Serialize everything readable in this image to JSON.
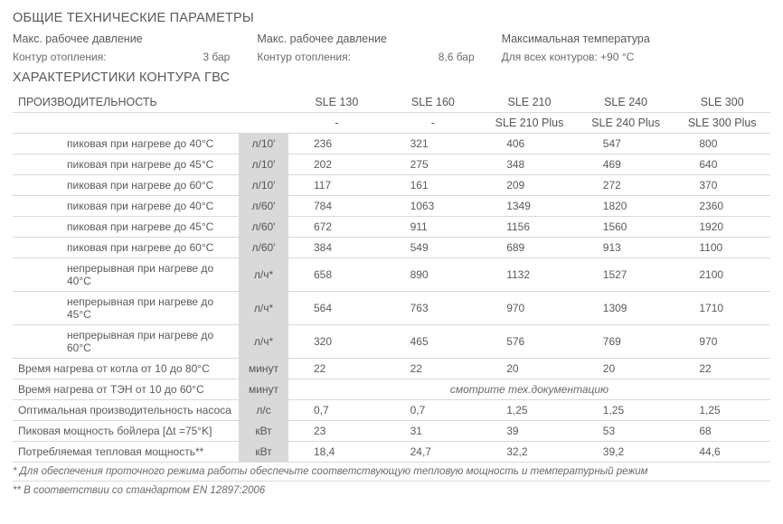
{
  "titles": {
    "general": "ОБЩИЕ ТЕХНИЧЕСКИЕ ПАРАМЕТРЫ",
    "dhw": "ХАРАКТЕРИСТИКИ КОНТУРА ГВС",
    "performance": "ПРОИЗВОДИТЕЛЬНОСТЬ"
  },
  "general": {
    "col1": {
      "head": "Макс. рабочее давление",
      "label": "Контур отопления:",
      "value": "3 бар"
    },
    "col2": {
      "head": "Макс. рабочее давление",
      "label": "Контур отопления:",
      "value": "8,6 бар"
    },
    "col3": {
      "head": "Максимальная температура",
      "label": "Для всех контуров: +90 °C",
      "value": ""
    }
  },
  "models": {
    "m1": "SLE 130",
    "m2": "SLE 160",
    "m3": "SLE 210",
    "m4": "SLE 240",
    "m5": "SLE 300",
    "p1": "-",
    "p2": "-",
    "p3": "SLE 210 Plus",
    "p4": "SLE 240 Plus",
    "p5": "SLE 300 Plus"
  },
  "rows": [
    {
      "label": "пиковая при нагреве до 40°C",
      "unit": "л/10'",
      "v": [
        "236",
        "321",
        "406",
        "547",
        "800"
      ],
      "indent": true
    },
    {
      "label": "пиковая при нагреве до 45°C",
      "unit": "л/10'",
      "v": [
        "202",
        "275",
        "348",
        "469",
        "640"
      ],
      "indent": true
    },
    {
      "label": "пиковая при нагреве до 60°C",
      "unit": "л/10'",
      "v": [
        "117",
        "161",
        "209",
        "272",
        "370"
      ],
      "indent": true
    },
    {
      "label": "пиковая при нагреве до 40°C",
      "unit": "л/60'",
      "v": [
        "784",
        "1063",
        "1349",
        "1820",
        "2360"
      ],
      "indent": true
    },
    {
      "label": "пиковая при нагреве до 45°C",
      "unit": "л/60'",
      "v": [
        "672",
        "911",
        "1156",
        "1560",
        "1920"
      ],
      "indent": true
    },
    {
      "label": "пиковая при нагреве до 60°C",
      "unit": "л/60'",
      "v": [
        "384",
        "549",
        "689",
        "913",
        "1100"
      ],
      "indent": true
    },
    {
      "label": "непрерывная при нагреве до 40°C",
      "unit": "л/ч*",
      "v": [
        "658",
        "890",
        "1132",
        "1527",
        "2100"
      ],
      "indent": true
    },
    {
      "label": "непрерывная при нагреве до 45°C",
      "unit": "л/ч*",
      "v": [
        "564",
        "763",
        "970",
        "1309",
        "1710"
      ],
      "indent": true
    },
    {
      "label": "непрерывная при нагреве до 60°C",
      "unit": "л/ч*",
      "v": [
        "320",
        "465",
        "576",
        "769",
        "970"
      ],
      "indent": true
    },
    {
      "label": "Время нагрева от котла от 10 до 80°C",
      "unit": "минут",
      "v": [
        "22",
        "22",
        "20",
        "20",
        "22"
      ],
      "indent": false
    },
    {
      "label": "Время нагрева от ТЭН от 10 до 60°C",
      "unit": "минут",
      "merged": "смотрите тех.документацию",
      "indent": false
    },
    {
      "label": "Оптимальная производительность насоса",
      "unit": "л/с",
      "v": [
        "0,7",
        "0,7",
        "1,25",
        "1,25",
        "1,25"
      ],
      "indent": false
    },
    {
      "label": "Пиковая мощность бойлера [Δt =75°K]",
      "unit": "кВт",
      "v": [
        "23",
        "31",
        "39",
        "53",
        "68"
      ],
      "indent": false
    },
    {
      "label": "Потребляемая тепловая мощность**",
      "unit": "кВт",
      "v": [
        "18,4",
        "24,7",
        "32,2",
        "39,2",
        "44,6"
      ],
      "indent": false
    }
  ],
  "footnotes": {
    "f1": "* Для обеспечения проточного режима работы обеспечьте соответствующую тепловую мощность и температурный режим",
    "f2": "** В соответствии со стандартом EN 12897:2006"
  }
}
